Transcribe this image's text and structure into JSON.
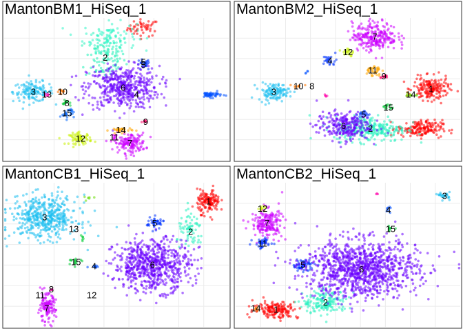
{
  "chart_data": [
    {
      "type": "scatter",
      "title": "MantonBM1_HiSeq_1",
      "grid": true,
      "clusters": [
        {
          "id": "1",
          "x": 0.62,
          "y": 0.93,
          "sx": 0.035,
          "sy": 0.03,
          "n": 50,
          "color": "#FF0000",
          "label": ""
        },
        {
          "id": "2",
          "x": 0.45,
          "y": 0.72,
          "sx": 0.045,
          "sy": 0.08,
          "n": 110,
          "color": "#22F0B8",
          "label": "2"
        },
        {
          "id": "2b",
          "x": 0.47,
          "y": 0.87,
          "sx": 0.06,
          "sy": 0.05,
          "n": 90,
          "color": "#33F5C8",
          "label": ""
        },
        {
          "id": "3",
          "x": 0.13,
          "y": 0.48,
          "sx": 0.045,
          "sy": 0.035,
          "n": 140,
          "color": "#1EC0F0",
          "label": "3"
        },
        {
          "id": "5",
          "x": 0.62,
          "y": 0.67,
          "sx": 0.015,
          "sy": 0.02,
          "n": 25,
          "color": "#0033FF",
          "label": "5"
        },
        {
          "id": "6",
          "x": 0.53,
          "y": 0.51,
          "sx": 0.08,
          "sy": 0.075,
          "n": 480,
          "color": "#6A00FF",
          "label": "6"
        },
        {
          "id": "7",
          "x": 0.56,
          "y": 0.12,
          "sx": 0.035,
          "sy": 0.035,
          "n": 140,
          "color": "#CC00FF",
          "label": "7"
        },
        {
          "id": "9",
          "x": 0.63,
          "y": 0.27,
          "sx": 0.008,
          "sy": 0.005,
          "n": 8,
          "color": "#FF0066",
          "label": "9"
        },
        {
          "id": "10",
          "x": 0.26,
          "y": 0.48,
          "sx": 0.012,
          "sy": 0.01,
          "n": 10,
          "color": "#FF7700",
          "label": "10"
        },
        {
          "id": "11",
          "x": 0.49,
          "y": 0.16,
          "sx": 0.01,
          "sy": 0.01,
          "n": 8,
          "color": "#E600FF",
          "label": "11"
        },
        {
          "id": "12",
          "x": 0.34,
          "y": 0.15,
          "sx": 0.025,
          "sy": 0.02,
          "n": 70,
          "color": "#C8F000",
          "label": "12"
        },
        {
          "id": "13",
          "x": 0.19,
          "y": 0.46,
          "sx": 0.008,
          "sy": 0.008,
          "n": 6,
          "color": "#FF00AA",
          "label": "13"
        },
        {
          "id": "14",
          "x": 0.52,
          "y": 0.21,
          "sx": 0.025,
          "sy": 0.01,
          "n": 30,
          "color": "#FFA500",
          "label": "14"
        },
        {
          "id": "15",
          "x": 0.28,
          "y": 0.33,
          "sx": 0.015,
          "sy": 0.02,
          "n": 25,
          "color": "#0066FF",
          "label": "15"
        },
        {
          "id": "8",
          "x": 0.28,
          "y": 0.4,
          "sx": 0.01,
          "sy": 0.01,
          "n": 12,
          "color": "#00CC33",
          "label": "8"
        },
        {
          "id": "4",
          "x": 0.92,
          "y": 0.46,
          "sx": 0.025,
          "sy": 0.01,
          "n": 50,
          "color": "#0050FF",
          "label": ""
        }
      ],
      "labels_only": [
        {
          "text": "4",
          "x": 0.59,
          "y": 0.46
        },
        {
          "text": "5",
          "x": 0.62,
          "y": 0.69
        }
      ]
    },
    {
      "type": "scatter",
      "title": "MantonBM2_HiSeq_1",
      "grid": true,
      "clusters": [
        {
          "id": "1",
          "x": 0.87,
          "y": 0.5,
          "sx": 0.04,
          "sy": 0.04,
          "n": 180,
          "color": "#FF0000",
          "label": "1"
        },
        {
          "id": "1b",
          "x": 0.82,
          "y": 0.22,
          "sx": 0.05,
          "sy": 0.03,
          "n": 170,
          "color": "#FF0000",
          "label": ""
        },
        {
          "id": "2",
          "x": 0.6,
          "y": 0.22,
          "sx": 0.08,
          "sy": 0.045,
          "n": 280,
          "color": "#26F0C0",
          "label": "2"
        },
        {
          "id": "3",
          "x": 0.17,
          "y": 0.48,
          "sx": 0.035,
          "sy": 0.03,
          "n": 120,
          "color": "#1EC0F0",
          "label": "3"
        },
        {
          "id": "4",
          "x": 0.42,
          "y": 0.7,
          "sx": 0.015,
          "sy": 0.02,
          "n": 25,
          "color": "#0033FF",
          "label": "4"
        },
        {
          "id": "5",
          "x": 0.57,
          "y": 0.32,
          "sx": 0.015,
          "sy": 0.015,
          "n": 20,
          "color": "#0033FF",
          "label": "5"
        },
        {
          "id": "6",
          "x": 0.48,
          "y": 0.24,
          "sx": 0.06,
          "sy": 0.05,
          "n": 260,
          "color": "#6A00FF",
          "label": "6"
        },
        {
          "id": "7",
          "x": 0.62,
          "y": 0.87,
          "sx": 0.05,
          "sy": 0.05,
          "n": 250,
          "color": "#CC00FF",
          "label": "7"
        },
        {
          "id": "9",
          "x": 0.66,
          "y": 0.59,
          "sx": 0.01,
          "sy": 0.006,
          "n": 10,
          "color": "#FF0066",
          "label": "9"
        },
        {
          "id": "10",
          "x": 0.28,
          "y": 0.52,
          "sx": 0.012,
          "sy": 0.008,
          "n": 8,
          "color": "#FF7700",
          "label": "10"
        },
        {
          "id": "11",
          "x": 0.61,
          "y": 0.63,
          "sx": 0.018,
          "sy": 0.02,
          "n": 35,
          "color": "#FFA500",
          "label": "11"
        },
        {
          "id": "12",
          "x": 0.5,
          "y": 0.76,
          "sx": 0.015,
          "sy": 0.02,
          "n": 20,
          "color": "#C8F000",
          "label": "12"
        },
        {
          "id": "13",
          "x": 0.4,
          "y": 0.45,
          "sx": 0.006,
          "sy": 0.006,
          "n": 5,
          "color": "#FF00AA",
          "label": ""
        },
        {
          "id": "14",
          "x": 0.78,
          "y": 0.46,
          "sx": 0.01,
          "sy": 0.01,
          "n": 10,
          "color": "#66DD00",
          "label": "14"
        },
        {
          "id": "15",
          "x": 0.68,
          "y": 0.37,
          "sx": 0.012,
          "sy": 0.01,
          "n": 12,
          "color": "#00CC33",
          "label": "15"
        },
        {
          "id": "8",
          "x": 0.32,
          "y": 0.62,
          "sx": 0.006,
          "sy": 0.008,
          "n": 4,
          "color": "#0050FF",
          "label": ""
        }
      ],
      "labels_only": [
        {
          "text": "8",
          "x": 0.34,
          "y": 0.52
        }
      ]
    },
    {
      "type": "scatter",
      "title": "MantonCB1_HiSeq_1",
      "grid": true,
      "clusters": [
        {
          "id": "1",
          "x": 0.91,
          "y": 0.87,
          "sx": 0.025,
          "sy": 0.04,
          "n": 140,
          "color": "#FF0000",
          "label": "1"
        },
        {
          "id": "2",
          "x": 0.83,
          "y": 0.66,
          "sx": 0.03,
          "sy": 0.06,
          "n": 70,
          "color": "#26F0C0",
          "label": "2"
        },
        {
          "id": "3",
          "x": 0.18,
          "y": 0.76,
          "sx": 0.075,
          "sy": 0.075,
          "n": 480,
          "color": "#1EC0F0",
          "label": "3"
        },
        {
          "id": "4",
          "x": 0.4,
          "y": 0.42,
          "sx": 0.015,
          "sy": 0.01,
          "n": 10,
          "color": "#0050FF",
          "label": "4"
        },
        {
          "id": "5",
          "x": 0.67,
          "y": 0.72,
          "sx": 0.02,
          "sy": 0.02,
          "n": 40,
          "color": "#0033FF",
          "label": "5"
        },
        {
          "id": "6",
          "x": 0.66,
          "y": 0.43,
          "sx": 0.085,
          "sy": 0.09,
          "n": 700,
          "color": "#6A00FF",
          "label": "6"
        },
        {
          "id": "7",
          "x": 0.19,
          "y": 0.13,
          "sx": 0.02,
          "sy": 0.05,
          "n": 120,
          "color": "#CC00FF",
          "label": "7"
        },
        {
          "id": "8",
          "x": 0.21,
          "y": 0.26,
          "sx": 0.005,
          "sy": 0.005,
          "n": 4,
          "color": "#FF00AA",
          "label": "8"
        },
        {
          "id": "12",
          "x": 0.38,
          "y": 0.9,
          "sx": 0.01,
          "sy": 0.01,
          "n": 6,
          "color": "#66DD00",
          "label": ""
        },
        {
          "id": "13",
          "x": 0.35,
          "y": 0.62,
          "sx": 0.008,
          "sy": 0.01,
          "n": 6,
          "color": "#00CC33",
          "label": ""
        },
        {
          "id": "15",
          "x": 0.32,
          "y": 0.45,
          "sx": 0.015,
          "sy": 0.01,
          "n": 15,
          "color": "#00CC33",
          "label": "15"
        }
      ],
      "labels_only": [
        {
          "text": "13",
          "x": 0.31,
          "y": 0.68
        },
        {
          "text": "11",
          "x": 0.16,
          "y": 0.22
        },
        {
          "text": "12",
          "x": 0.39,
          "y": 0.22
        }
      ]
    },
    {
      "type": "scatter",
      "title": "MantonCB2_HiSeq_1",
      "grid": true,
      "clusters": [
        {
          "id": "1",
          "x": 0.18,
          "y": 0.12,
          "sx": 0.05,
          "sy": 0.03,
          "n": 160,
          "color": "#FF0000",
          "label": "1"
        },
        {
          "id": "2",
          "x": 0.4,
          "y": 0.17,
          "sx": 0.05,
          "sy": 0.04,
          "n": 170,
          "color": "#26F0C0",
          "label": "2"
        },
        {
          "id": "3",
          "x": 0.93,
          "y": 0.91,
          "sx": 0.012,
          "sy": 0.012,
          "n": 25,
          "color": "#1EC0F0",
          "label": "3"
        },
        {
          "id": "4",
          "x": 0.68,
          "y": 0.81,
          "sx": 0.006,
          "sy": 0.02,
          "n": 8,
          "color": "#0050FF",
          "label": "4"
        },
        {
          "id": "5",
          "x": 0.3,
          "y": 0.43,
          "sx": 0.025,
          "sy": 0.02,
          "n": 60,
          "color": "#0033FF",
          "label": "5"
        },
        {
          "id": "6",
          "x": 0.56,
          "y": 0.4,
          "sx": 0.125,
          "sy": 0.1,
          "n": 1100,
          "color": "#6A00FF",
          "label": "6"
        },
        {
          "id": "7",
          "x": 0.14,
          "y": 0.72,
          "sx": 0.035,
          "sy": 0.05,
          "n": 190,
          "color": "#CC00FF",
          "label": "7"
        },
        {
          "id": "8",
          "x": 0.63,
          "y": 0.92,
          "sx": 0.004,
          "sy": 0.004,
          "n": 3,
          "color": "#FF00AA",
          "label": ""
        },
        {
          "id": "11",
          "x": 0.12,
          "y": 0.58,
          "sx": 0.02,
          "sy": 0.02,
          "n": 40,
          "color": "#0033FF",
          "label": "11"
        },
        {
          "id": "12",
          "x": 0.12,
          "y": 0.82,
          "sx": 0.01,
          "sy": 0.01,
          "n": 10,
          "color": "#C8F000",
          "label": "12"
        },
        {
          "id": "14",
          "x": 0.09,
          "y": 0.13,
          "sx": 0.01,
          "sy": 0.01,
          "n": 8,
          "color": "#FF7700",
          "label": "14"
        },
        {
          "id": "15",
          "x": 0.69,
          "y": 0.68,
          "sx": 0.008,
          "sy": 0.008,
          "n": 8,
          "color": "#00CC33",
          "label": "15"
        }
      ],
      "labels_only": []
    }
  ]
}
